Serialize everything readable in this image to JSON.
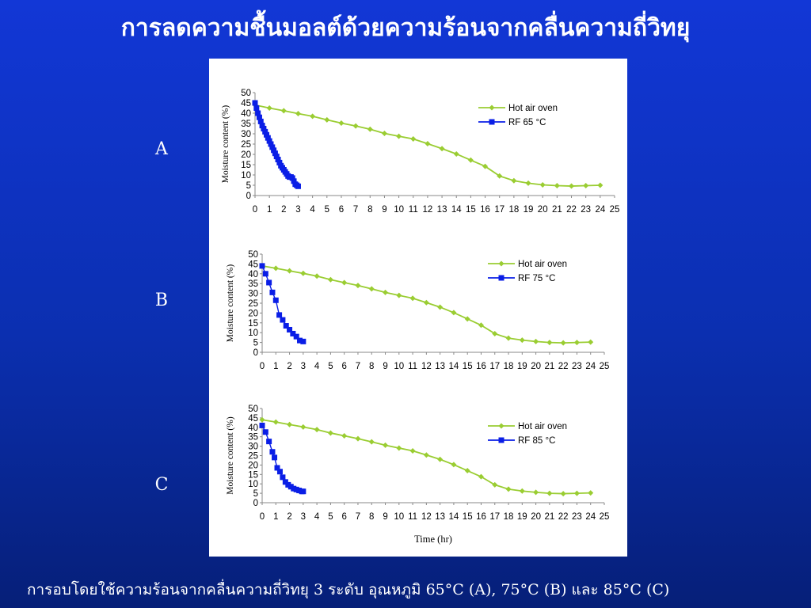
{
  "slide": {
    "title": "การลดความชื้นมอลต์ด้วยความร้อนจากคลื่นความถี่วิทยุ",
    "caption": "การอบโดยใช้ความร้อนจากคลื่นความถี่วิทยุ 3 ระดับ อุณหภูมิ 65°C (A), 75°C (B) และ 85°C (C)",
    "panel_labels": [
      "A",
      "B",
      "C"
    ]
  },
  "colors": {
    "hot_air": "#9acd32",
    "rf": "#0a1ee6",
    "background": "#0b2fb0",
    "chart_bg": "#ffffff"
  },
  "chart_data": [
    {
      "type": "line",
      "panel": "A",
      "ylabel": "Moisture content (%)",
      "xlabel": "",
      "xlim": [
        0,
        25
      ],
      "ylim": [
        0,
        50
      ],
      "xticks": [
        0,
        1,
        2,
        3,
        4,
        5,
        6,
        7,
        8,
        9,
        10,
        11,
        12,
        13,
        14,
        15,
        16,
        17,
        18,
        19,
        20,
        21,
        22,
        23,
        24,
        25
      ],
      "yticks": [
        0,
        5,
        10,
        15,
        20,
        25,
        30,
        35,
        40,
        45,
        50
      ],
      "legend_position": "top-right",
      "series": [
        {
          "name": "Hot air oven",
          "marker": "diamond",
          "x": [
            0,
            1,
            2,
            3,
            4,
            5,
            6,
            7,
            8,
            9,
            10,
            11,
            12,
            13,
            14,
            15,
            16,
            17,
            18,
            19,
            20,
            21,
            22,
            23,
            24
          ],
          "y": [
            44,
            42.5,
            41.2,
            39.8,
            38.5,
            36.8,
            35.2,
            33.8,
            32.2,
            30.2,
            28.8,
            27.5,
            25.2,
            22.8,
            20.2,
            17.2,
            14.2,
            9.5,
            7.2,
            6.0,
            5.2,
            4.8,
            4.6,
            4.8,
            5.0
          ]
        },
        {
          "name": "RF 65 °C",
          "marker": "square",
          "x": [
            0,
            0.1,
            0.2,
            0.3,
            0.4,
            0.5,
            0.6,
            0.7,
            0.8,
            0.9,
            1.0,
            1.1,
            1.2,
            1.3,
            1.4,
            1.5,
            1.6,
            1.7,
            1.8,
            1.9,
            2.0,
            2.1,
            2.2,
            2.3,
            2.4,
            2.5,
            2.6,
            2.7,
            2.8,
            2.9,
            3.0
          ],
          "y": [
            45,
            42.5,
            40,
            38,
            36,
            34,
            32.5,
            31,
            29.5,
            28,
            26.5,
            25,
            23.5,
            22,
            20.5,
            19,
            17.5,
            16,
            14.5,
            13.5,
            12.5,
            11.5,
            10.5,
            9.5,
            9,
            9,
            8.5,
            7,
            5.5,
            5,
            4.5
          ]
        }
      ]
    },
    {
      "type": "line",
      "panel": "B",
      "ylabel": "Moisture content (%)",
      "xlabel": "",
      "xlim": [
        0,
        25
      ],
      "ylim": [
        0,
        50
      ],
      "xticks": [
        0,
        1,
        2,
        3,
        4,
        5,
        6,
        7,
        8,
        9,
        10,
        11,
        12,
        13,
        14,
        15,
        16,
        17,
        18,
        19,
        20,
        21,
        22,
        23,
        24,
        25
      ],
      "yticks": [
        0,
        5,
        10,
        15,
        20,
        25,
        30,
        35,
        40,
        45,
        50
      ],
      "legend_position": "top-right",
      "series": [
        {
          "name": "Hot air oven",
          "marker": "diamond",
          "x": [
            0,
            1,
            2,
            3,
            4,
            5,
            6,
            7,
            8,
            9,
            10,
            11,
            12,
            13,
            14,
            15,
            16,
            17,
            18,
            19,
            20,
            21,
            22,
            23,
            24
          ],
          "y": [
            44,
            42.8,
            41.5,
            40.2,
            38.8,
            37.0,
            35.5,
            34.0,
            32.3,
            30.5,
            29.0,
            27.5,
            25.3,
            23.0,
            20.2,
            17.0,
            13.8,
            9.5,
            7.2,
            6.2,
            5.5,
            5.0,
            4.8,
            5.0,
            5.2
          ]
        },
        {
          "name": "RF 75 °C",
          "marker": "square",
          "x": [
            0,
            0.25,
            0.5,
            0.75,
            1.0,
            1.25,
            1.5,
            1.75,
            2.0,
            2.25,
            2.5,
            2.75,
            3.0
          ],
          "y": [
            44,
            40,
            35.5,
            30.5,
            26.5,
            19,
            16.5,
            13.5,
            11.5,
            9.5,
            8,
            6,
            5.5
          ]
        }
      ]
    },
    {
      "type": "line",
      "panel": "C",
      "ylabel": "Moisture content (%)",
      "xlabel": "Time (hr)",
      "xlim": [
        0,
        25
      ],
      "ylim": [
        0,
        50
      ],
      "xticks": [
        0,
        1,
        2,
        3,
        4,
        5,
        6,
        7,
        8,
        9,
        10,
        11,
        12,
        13,
        14,
        15,
        16,
        17,
        18,
        19,
        20,
        21,
        22,
        23,
        24,
        25
      ],
      "yticks": [
        0,
        5,
        10,
        15,
        20,
        25,
        30,
        35,
        40,
        45,
        50
      ],
      "legend_position": "top-right",
      "series": [
        {
          "name": "Hot air oven",
          "marker": "diamond",
          "x": [
            0,
            1,
            2,
            3,
            4,
            5,
            6,
            7,
            8,
            9,
            10,
            11,
            12,
            13,
            14,
            15,
            16,
            17,
            18,
            19,
            20,
            21,
            22,
            23,
            24
          ],
          "y": [
            44,
            42.8,
            41.5,
            40.2,
            38.8,
            37.0,
            35.5,
            34.0,
            32.3,
            30.5,
            29.0,
            27.5,
            25.3,
            23.0,
            20.2,
            17.0,
            13.8,
            9.5,
            7.2,
            6.2,
            5.5,
            5.0,
            4.8,
            5.0,
            5.2
          ]
        },
        {
          "name": "RF 85 °C",
          "marker": "square",
          "x": [
            0,
            0.25,
            0.5,
            0.75,
            0.9,
            1.1,
            1.3,
            1.5,
            1.7,
            1.9,
            2.1,
            2.3,
            2.5,
            2.7,
            2.9,
            3.0
          ],
          "y": [
            41,
            37.5,
            32.5,
            27,
            24,
            18.5,
            16.5,
            13.5,
            11,
            9.5,
            8.5,
            7.5,
            7,
            6.5,
            6,
            6
          ]
        }
      ]
    }
  ]
}
